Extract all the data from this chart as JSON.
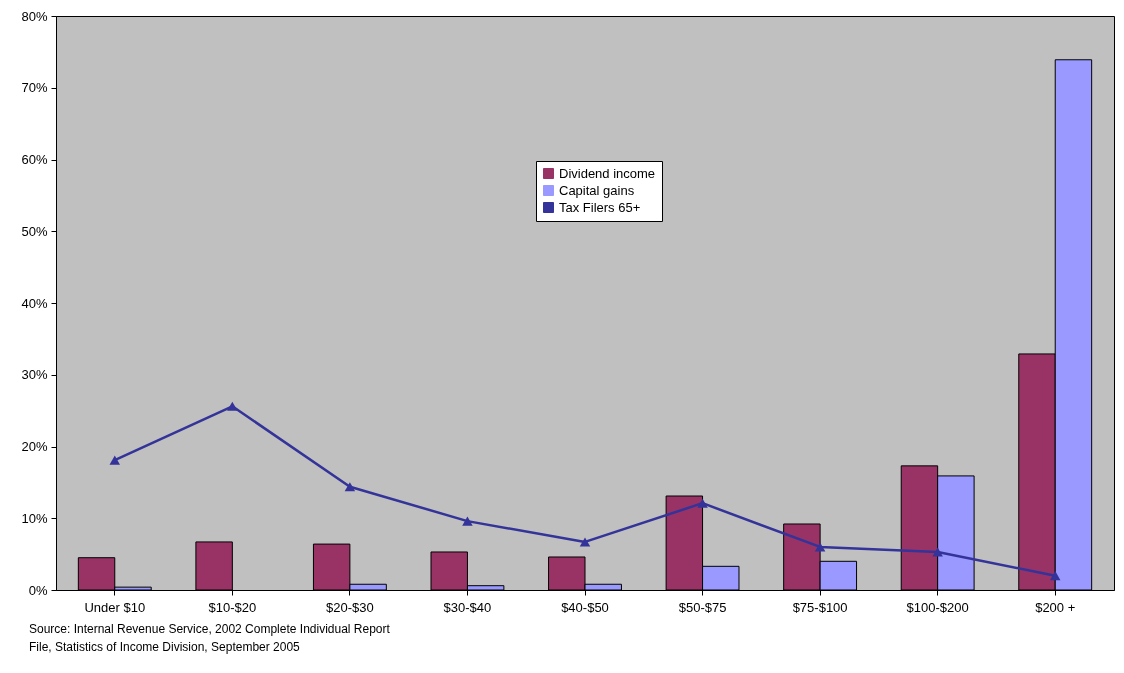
{
  "chart_data": {
    "type": "bar",
    "categories": [
      "Under $10",
      "$10-$20",
      "$20-$30",
      "$30-$40",
      "$40-$50",
      "$50-$75",
      "$75-$100",
      "$100-$200",
      "$200 +"
    ],
    "series": [
      {
        "name": "Dividend income",
        "color": "#993366",
        "values": [
          4.5,
          6.7,
          6.4,
          5.3,
          4.6,
          13.1,
          9.2,
          17.3,
          32.9
        ]
      },
      {
        "name": "Capital gains",
        "color": "#9999ff",
        "values": [
          0.4,
          null,
          0.8,
          0.6,
          0.8,
          3.3,
          4.0,
          15.9,
          73.9
        ]
      },
      {
        "name": "Tax Filers 65+",
        "color": "#333399",
        "type": "line",
        "marker": "triangle",
        "values": [
          18.1,
          25.6,
          14.4,
          9.6,
          6.7,
          12.1,
          6.0,
          5.3,
          2.0
        ]
      }
    ],
    "ylim": [
      0,
      80
    ],
    "yticks": [
      {
        "value": 0,
        "label": "0%"
      },
      {
        "value": 10,
        "label": "10%"
      },
      {
        "value": 20,
        "label": "20%"
      },
      {
        "value": 30,
        "label": "30%"
      },
      {
        "value": 40,
        "label": "40%"
      },
      {
        "value": 50,
        "label": "50%"
      },
      {
        "value": 60,
        "label": "60%"
      },
      {
        "value": 70,
        "label": "70%"
      },
      {
        "value": 80,
        "label": "80%"
      }
    ],
    "grid": false,
    "legend": "top",
    "annotations": [
      "Source: Internal Revenue Service, 2002 Complete Individual Report File, Statistics  of Income Division, September 2005"
    ]
  }
}
